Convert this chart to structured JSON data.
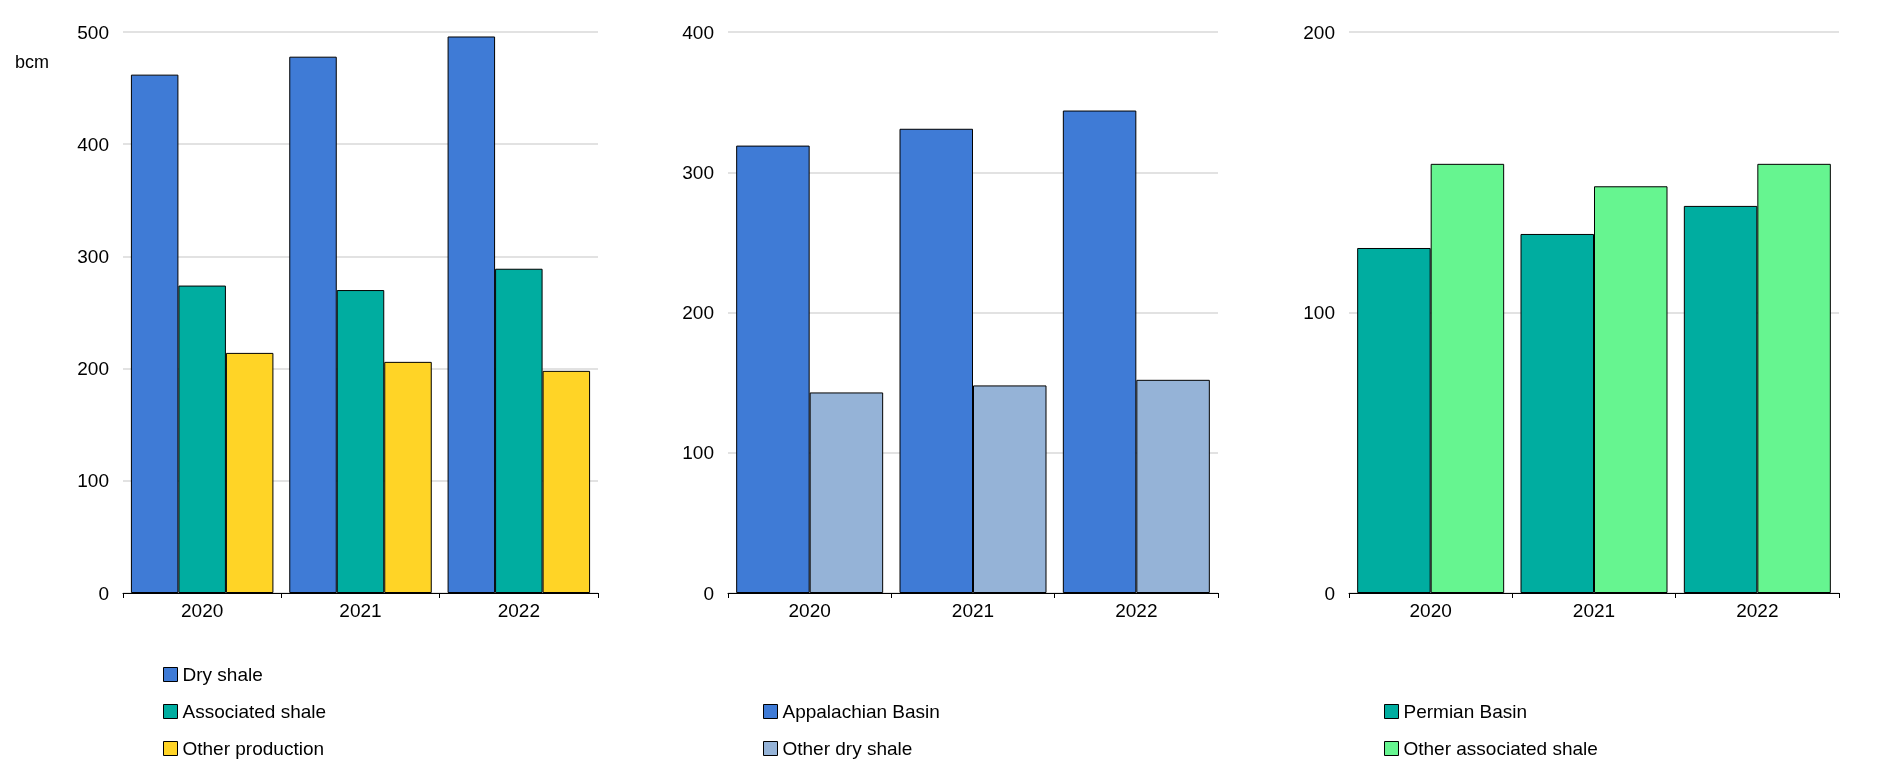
{
  "chart_data": [
    {
      "type": "bar",
      "ylabel": "bcm",
      "categories": [
        "2020",
        "2021",
        "2022"
      ],
      "series": [
        {
          "name": "Dry shale",
          "color": "#3f7bd6",
          "values": [
            462,
            478,
            496
          ]
        },
        {
          "name": "Associated shale",
          "color": "#00ada0",
          "values": [
            274,
            270,
            289
          ]
        },
        {
          "name": "Other production",
          "color": "#ffd426",
          "values": [
            214,
            206,
            198
          ]
        }
      ],
      "ylim": [
        0,
        500
      ],
      "yticks": [
        0,
        100,
        200,
        300,
        400,
        500
      ],
      "grid": "y",
      "legend": "bottom"
    },
    {
      "type": "bar",
      "categories": [
        "2020",
        "2021",
        "2022"
      ],
      "series": [
        {
          "name": "Appalachian Basin",
          "color": "#3f7bd6",
          "values": [
            319,
            331,
            344
          ]
        },
        {
          "name": "Other dry shale",
          "color": "#95b3d7",
          "values": [
            143,
            148,
            152
          ]
        }
      ],
      "ylim": [
        0,
        400
      ],
      "yticks": [
        0,
        100,
        200,
        300,
        400
      ],
      "grid": "y",
      "legend": "bottom"
    },
    {
      "type": "bar",
      "categories": [
        "2020",
        "2021",
        "2022"
      ],
      "series": [
        {
          "name": "Permian Basin",
          "color": "#00ada0",
          "values": [
            123,
            128,
            138
          ]
        },
        {
          "name": "Other associated shale",
          "color": "#66f590",
          "values": [
            153,
            145,
            153
          ]
        }
      ],
      "ylim": [
        0,
        200
      ],
      "yticks": [
        0,
        100,
        200
      ],
      "grid": "y",
      "legend": "bottom"
    }
  ]
}
